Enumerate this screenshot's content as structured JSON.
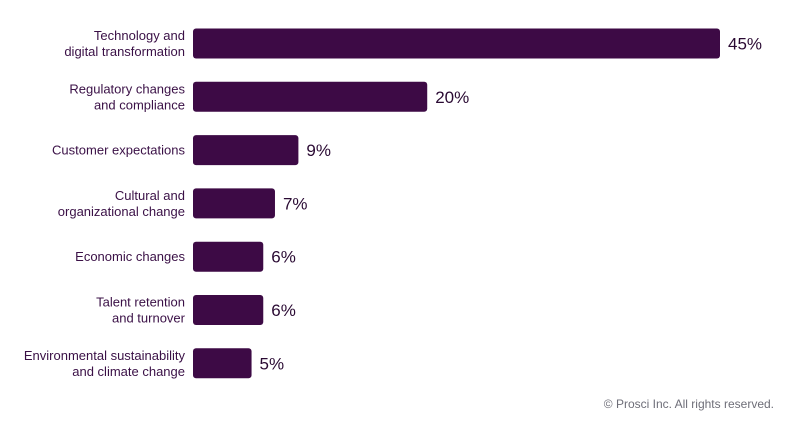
{
  "chart_data": {
    "type": "bar",
    "orientation": "horizontal",
    "categories": [
      [
        "Technology and",
        "digital transformation"
      ],
      [
        "Regulatory changes",
        "and compliance"
      ],
      [
        "Customer expectations"
      ],
      [
        "Cultural and",
        "organizational change"
      ],
      [
        "Economic changes"
      ],
      [
        "Talent retention",
        "and turnover"
      ],
      [
        "Environmental sustainability",
        "and climate change"
      ]
    ],
    "values": [
      45,
      20,
      9,
      7,
      6,
      6,
      5
    ],
    "value_labels": [
      "45%",
      "20%",
      "9%",
      "7%",
      "6%",
      "6%",
      "5%"
    ],
    "unit": "%",
    "xlim": [
      0,
      45
    ],
    "grid": false,
    "bar_color": "#3d0a45"
  },
  "footer": {
    "copyright": "© Prosci Inc. All rights reserved."
  }
}
